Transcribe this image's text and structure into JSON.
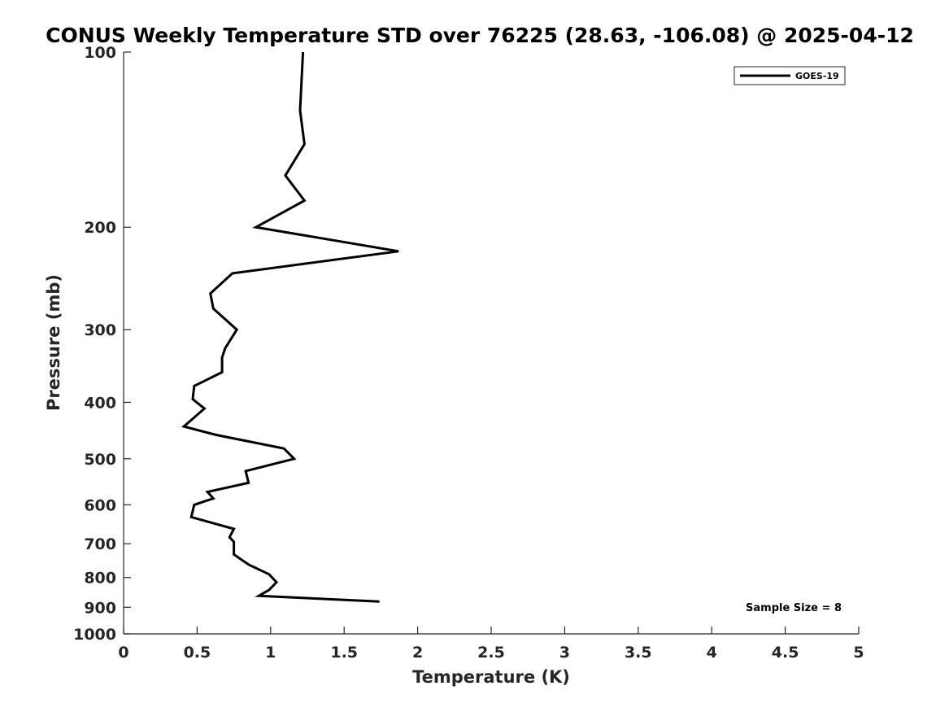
{
  "chart_data": {
    "type": "line",
    "title": "CONUS Weekly Temperature STD over 76225 (28.63, -106.08) @ 2025-04-12",
    "xlabel": "Temperature (K)",
    "ylabel": "Pressure (mb)",
    "xlim": [
      0,
      5
    ],
    "ylim": [
      100,
      1000
    ],
    "y_scale": "log",
    "y_reversed": true,
    "x_ticks": [
      "0",
      "0.5",
      "1",
      "1.5",
      "2",
      "2.5",
      "3",
      "3.5",
      "4",
      "4.5",
      "5"
    ],
    "y_ticks": [
      "100",
      "200",
      "300",
      "400",
      "500",
      "600",
      "700",
      "800",
      "900",
      "1000"
    ],
    "grid": false,
    "legend": {
      "placement": "top-right",
      "entries": [
        "GOES-19"
      ]
    },
    "annotation": "Sample Size = 8",
    "series": [
      {
        "name": "GOES-19",
        "color": "#000000",
        "points": [
          [
            1.22,
            100
          ],
          [
            1.2,
            126
          ],
          [
            1.23,
            144
          ],
          [
            1.1,
            163
          ],
          [
            1.23,
            180
          ],
          [
            0.9,
            200
          ],
          [
            1.87,
            220
          ],
          [
            0.74,
            240
          ],
          [
            0.59,
            260
          ],
          [
            0.61,
            276
          ],
          [
            0.77,
            300
          ],
          [
            0.69,
            323
          ],
          [
            0.67,
            335
          ],
          [
            0.67,
            355
          ],
          [
            0.48,
            375
          ],
          [
            0.47,
            395
          ],
          [
            0.55,
            410
          ],
          [
            0.41,
            440
          ],
          [
            0.63,
            455
          ],
          [
            1.09,
            480
          ],
          [
            1.16,
            500
          ],
          [
            0.83,
            525
          ],
          [
            0.85,
            550
          ],
          [
            0.57,
            570
          ],
          [
            0.61,
            585
          ],
          [
            0.48,
            600
          ],
          [
            0.46,
            630
          ],
          [
            0.75,
            660
          ],
          [
            0.72,
            682
          ],
          [
            0.75,
            695
          ],
          [
            0.75,
            730
          ],
          [
            0.85,
            760
          ],
          [
            0.99,
            790
          ],
          [
            1.04,
            815
          ],
          [
            0.99,
            840
          ],
          [
            0.92,
            860
          ],
          [
            1.74,
            880
          ]
        ]
      }
    ]
  }
}
